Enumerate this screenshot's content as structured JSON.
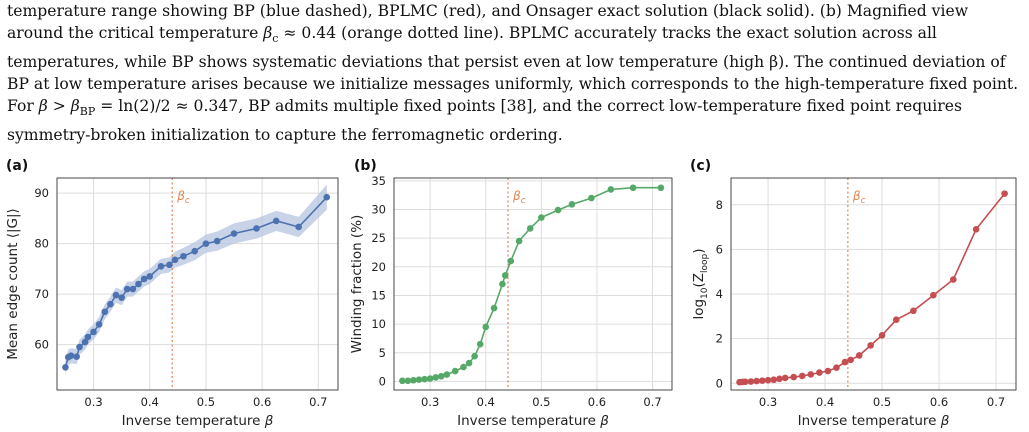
{
  "caption": {
    "line1": "temperature range showing BP (blue dashed), BPLMC (red), and Onsager exact solution (black solid). (b) Magnified view",
    "line2_parts": [
      "around the critical temperature ",
      "β",
      "c",
      " ≈ 0.44 (orange dotted line).  BPLMC accurately tracks the exact solution across all"
    ],
    "line3": "temperatures, while BP shows systematic deviations that persist even at low temperature (high β). The continued deviation of",
    "line4": "BP at low temperature arises because we initialize messages uniformly, which corresponds to the high-temperature fixed point.",
    "line5_parts": [
      "For ",
      "β",
      " > ",
      "β",
      "BP",
      " = ln(2)/2 ≈ 0.347, BP admits multiple fixed points [38], and the correct low-temperature fixed point requires"
    ],
    "line6": "symmetry-broken initialization to capture the ferromagnetic ordering."
  },
  "colors": {
    "a": "#4c72b0",
    "a_band": "#b6c4e0",
    "b": "#55a868",
    "c": "#c44e52",
    "critical": "#dd8452",
    "grid": "#dddddd"
  },
  "chart_data": [
    {
      "type": "line",
      "panel_label": "(a)",
      "xlabel": "Inverse temperature β",
      "ylabel": "Mean edge count ⟨|G|⟩",
      "xlim": [
        0.235,
        0.735
      ],
      "ylim": [
        51,
        93
      ],
      "xticks": [
        0.3,
        0.4,
        0.5,
        0.6,
        0.7
      ],
      "xtick_labels": [
        "0.3",
        "0.4",
        "0.5",
        "0.6",
        "0.7"
      ],
      "yticks": [
        60,
        70,
        80,
        90
      ],
      "ytick_labels": [
        "60",
        "70",
        "80",
        "90"
      ],
      "critical_x": 0.44,
      "critical_label": "βc",
      "grid": true,
      "band": true,
      "x": [
        0.25,
        0.255,
        0.26,
        0.27,
        0.275,
        0.285,
        0.29,
        0.3,
        0.31,
        0.32,
        0.33,
        0.34,
        0.35,
        0.36,
        0.37,
        0.38,
        0.39,
        0.4,
        0.42,
        0.435,
        0.445,
        0.46,
        0.48,
        0.5,
        0.52,
        0.55,
        0.59,
        0.625,
        0.665,
        0.715
      ],
      "y": [
        55.5,
        57.5,
        57.8,
        57.6,
        59.5,
        60.5,
        61.5,
        62.5,
        64.0,
        66.5,
        68.0,
        69.8,
        69.3,
        71.0,
        71.0,
        72.0,
        73.0,
        73.5,
        75.5,
        75.8,
        76.8,
        77.5,
        78.5,
        80.0,
        80.5,
        82.0,
        83.0,
        84.5,
        83.3,
        89.2
      ],
      "band_halfwidth": [
        1.5,
        1.5,
        1.5,
        1.5,
        1.5,
        1.5,
        1.5,
        1.5,
        1.5,
        1.5,
        1.5,
        1.5,
        1.5,
        1.5,
        1.5,
        1.5,
        1.5,
        1.5,
        1.5,
        1.5,
        1.6,
        1.7,
        1.8,
        1.8,
        1.9,
        2.0,
        2.0,
        2.0,
        2.0,
        2.5
      ]
    },
    {
      "type": "line",
      "panel_label": "(b)",
      "xlabel": "Inverse temperature β",
      "ylabel": "Winding fraction (%)",
      "xlim": [
        0.235,
        0.735
      ],
      "ylim": [
        -1.5,
        35.5
      ],
      "xticks": [
        0.3,
        0.4,
        0.5,
        0.6,
        0.7
      ],
      "xtick_labels": [
        "0.3",
        "0.4",
        "0.5",
        "0.6",
        "0.7"
      ],
      "yticks": [
        0,
        5,
        10,
        15,
        20,
        25,
        30,
        35
      ],
      "ytick_labels": [
        "0",
        "5",
        "10",
        "15",
        "20",
        "25",
        "30",
        "35"
      ],
      "critical_x": 0.44,
      "critical_label": "βc",
      "grid": true,
      "x": [
        0.25,
        0.26,
        0.27,
        0.28,
        0.29,
        0.3,
        0.31,
        0.32,
        0.33,
        0.345,
        0.36,
        0.37,
        0.38,
        0.39,
        0.4,
        0.415,
        0.43,
        0.435,
        0.445,
        0.46,
        0.48,
        0.5,
        0.53,
        0.555,
        0.59,
        0.625,
        0.665,
        0.715
      ],
      "y": [
        0.1,
        0.1,
        0.2,
        0.3,
        0.4,
        0.5,
        0.7,
        0.9,
        1.2,
        1.8,
        2.5,
        3.2,
        4.4,
        6.5,
        9.5,
        12.8,
        17.0,
        18.5,
        21.0,
        24.5,
        26.7,
        28.6,
        29.9,
        30.9,
        32.0,
        33.5,
        33.8,
        33.8
      ]
    },
    {
      "type": "line",
      "panel_label": "(c)",
      "xlabel": "Inverse temperature β",
      "ylabel": "log10(Zloop)",
      "xlim": [
        0.235,
        0.735
      ],
      "ylim": [
        -0.3,
        9.2
      ],
      "xticks": [
        0.3,
        0.4,
        0.5,
        0.6,
        0.7
      ],
      "xtick_labels": [
        "0.3",
        "0.4",
        "0.5",
        "0.6",
        "0.7"
      ],
      "yticks": [
        0,
        2,
        4,
        6,
        8
      ],
      "ytick_labels": [
        "0",
        "2",
        "4",
        "6",
        "8"
      ],
      "critical_x": 0.44,
      "critical_label": "βc",
      "grid": true,
      "x": [
        0.25,
        0.255,
        0.26,
        0.27,
        0.28,
        0.29,
        0.3,
        0.31,
        0.32,
        0.33,
        0.345,
        0.36,
        0.375,
        0.39,
        0.405,
        0.42,
        0.435,
        0.445,
        0.46,
        0.48,
        0.5,
        0.525,
        0.555,
        0.59,
        0.625,
        0.665,
        0.715
      ],
      "y": [
        0.05,
        0.06,
        0.07,
        0.08,
        0.1,
        0.12,
        0.14,
        0.16,
        0.2,
        0.24,
        0.28,
        0.33,
        0.4,
        0.48,
        0.55,
        0.7,
        0.95,
        1.05,
        1.25,
        1.7,
        2.15,
        2.85,
        3.25,
        3.95,
        4.65,
        6.9,
        8.5
      ]
    }
  ]
}
